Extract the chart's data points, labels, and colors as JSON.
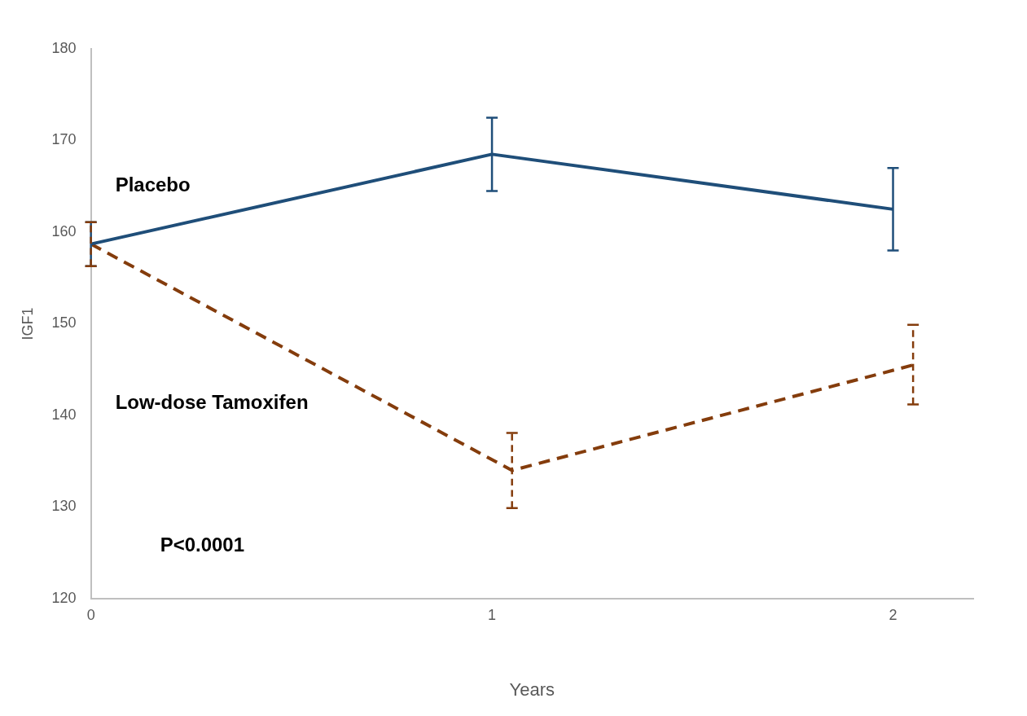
{
  "chart_data": {
    "type": "line",
    "xlabel": "Years",
    "ylabel": "IGF1",
    "xlim": [
      0,
      2.2
    ],
    "xticks": [
      0,
      1,
      2
    ],
    "ylim": [
      120,
      180
    ],
    "yticks": [
      120,
      130,
      140,
      150,
      160,
      170,
      180
    ],
    "grid": false,
    "legend": false,
    "marker": "none",
    "series": [
      {
        "name": "Placebo",
        "color": "#1f4e79",
        "line_style": "solid",
        "x": [
          0,
          1,
          2
        ],
        "values": [
          158.7,
          168.5,
          162.5
        ],
        "errors": [
          2.4,
          4,
          4.5
        ]
      },
      {
        "name": "Low-dose Tamoxifen",
        "color": "#843c0c",
        "line_style": "dashed",
        "x": [
          0,
          1.05,
          2.05
        ],
        "values": [
          158.7,
          134,
          145.5
        ],
        "errors": [
          [
            156.3,
            161.1
          ],
          [
            129.9,
            138.1
          ],
          [
            141.2,
            149.9
          ]
        ]
      }
    ],
    "annotations": [
      "P<0.0001"
    ]
  }
}
